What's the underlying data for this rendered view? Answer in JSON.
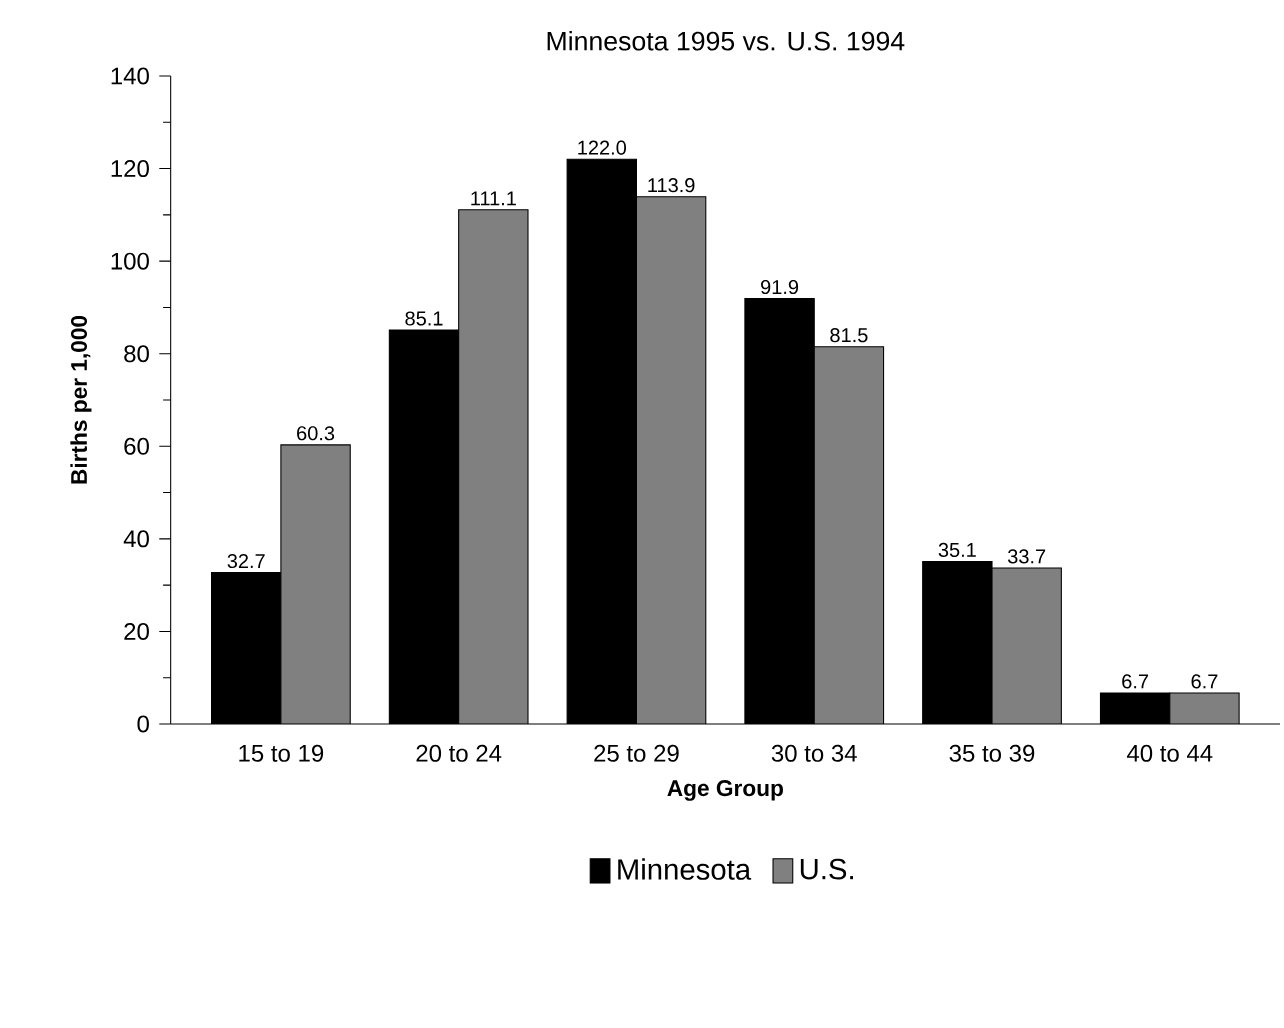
{
  "chart_data": {
    "type": "bar",
    "title": "Minnesota 1995 vs. U.S. 1994",
    "xlabel": "Age Group",
    "ylabel": "Births per 1,000",
    "categories": [
      "15 to 19",
      "20 to 24",
      "25 to 29",
      "30 to 34",
      "35 to 39",
      "40 to 44"
    ],
    "series": [
      {
        "name": "Minnesota",
        "color": "#000000",
        "values": [
          32.7,
          85.1,
          122.0,
          91.9,
          35.1,
          6.7
        ],
        "value_labels": [
          "32.7",
          "85.1",
          "122.0",
          "91.9",
          "35.1",
          "6.7"
        ]
      },
      {
        "name": "U.S.",
        "color": "#808080",
        "values": [
          60.3,
          111.1,
          113.9,
          81.5,
          33.7,
          6.7
        ],
        "value_labels": [
          "60.3",
          "111.1",
          "113.9",
          "81.5",
          "33.7",
          "6.7"
        ]
      }
    ],
    "ylim": [
      0,
      140
    ],
    "yticks": [
      0,
      20,
      40,
      60,
      80,
      100,
      120,
      140
    ],
    "grid": false,
    "legend": "bottom"
  }
}
